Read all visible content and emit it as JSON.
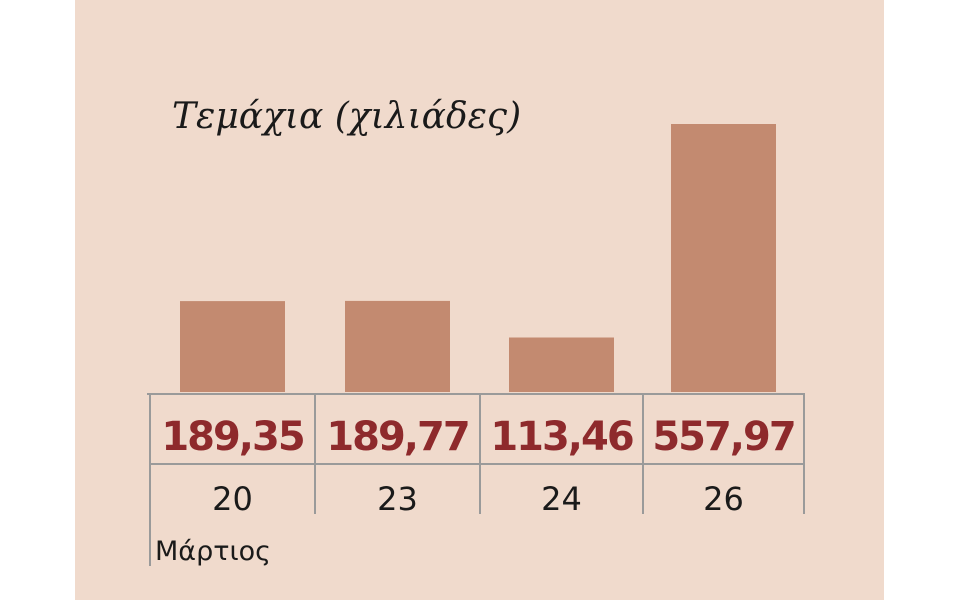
{
  "chart_data": {
    "type": "bar",
    "title": "Τεμάχια (χιλιάδες)",
    "categories": [
      "20",
      "23",
      "24",
      "26"
    ],
    "value_labels": [
      "189,35",
      "189,77",
      "113,46",
      "557,97"
    ],
    "values": [
      189.35,
      189.77,
      113.46,
      557.97
    ],
    "xlabel": "Μάρτιος",
    "ylabel": "",
    "ylim": [
      0,
      557.97
    ],
    "grid": false,
    "legend": "none"
  },
  "colors": {
    "background": "#f0dacc",
    "bar": "#c38a70",
    "value_text": "#8e2a2c",
    "grid_line": "#9a9a9a"
  }
}
